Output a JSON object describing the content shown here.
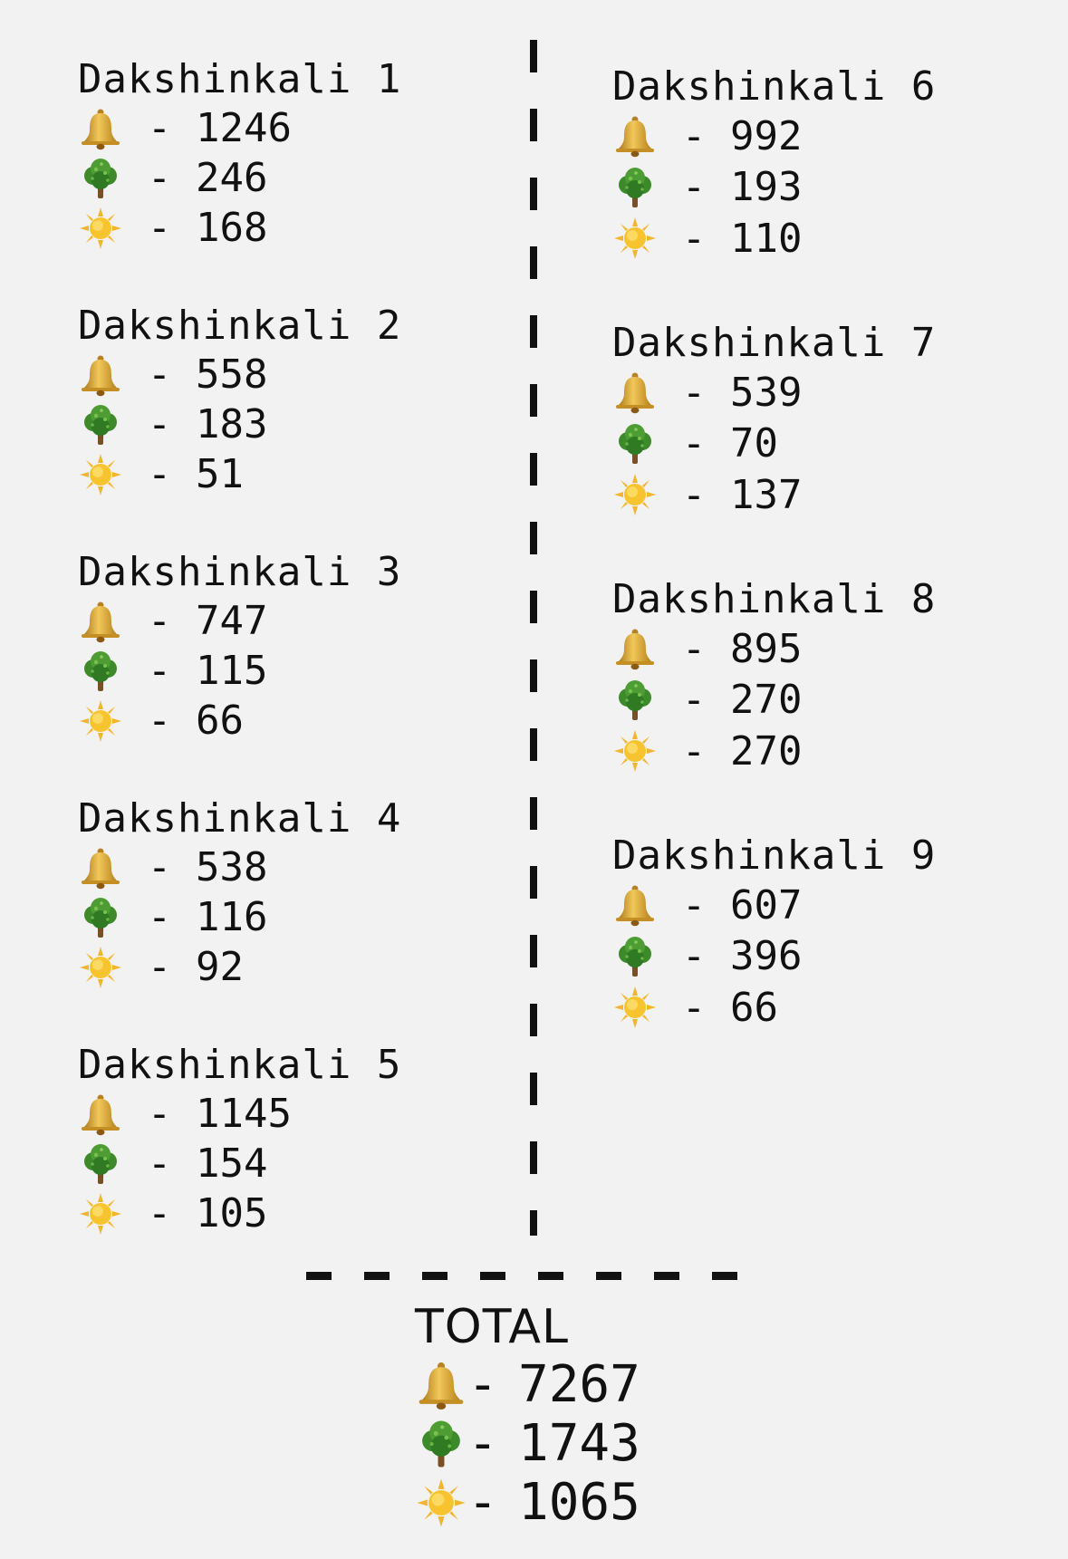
{
  "icons": {
    "bell": "bell-icon",
    "tree": "tree-icon",
    "sun": "sun-icon"
  },
  "colors": {
    "background": "#f2f2f2",
    "text": "#111111",
    "bell": "#d9a62e",
    "tree": "#3f8a2c",
    "sun": "#f7c32e"
  },
  "separator": "-",
  "columns": {
    "left": [
      {
        "name": "Dakshinkali 1",
        "bell": "1246",
        "tree": "246",
        "sun": "168"
      },
      {
        "name": "Dakshinkali 2",
        "bell": "558",
        "tree": "183",
        "sun": "51"
      },
      {
        "name": "Dakshinkali 3",
        "bell": "747",
        "tree": "115",
        "sun": "66"
      },
      {
        "name": "Dakshinkali 4",
        "bell": "538",
        "tree": "116",
        "sun": "92"
      },
      {
        "name": "Dakshinkali 5",
        "bell": "1145",
        "tree": "154",
        "sun": "105"
      }
    ],
    "right": [
      {
        "name": "Dakshinkali 6",
        "bell": "992",
        "tree": "193",
        "sun": "110"
      },
      {
        "name": "Dakshinkali 7",
        "bell": "539",
        "tree": "70",
        "sun": "137"
      },
      {
        "name": "Dakshinkali 8",
        "bell": "895",
        "tree": "270",
        "sun": "270"
      },
      {
        "name": "Dakshinkali 9",
        "bell": "607",
        "tree": "396",
        "sun": "66"
      }
    ]
  },
  "total": {
    "label": "TOTAL",
    "bell": "7267",
    "tree": "1743",
    "sun": "1065"
  }
}
